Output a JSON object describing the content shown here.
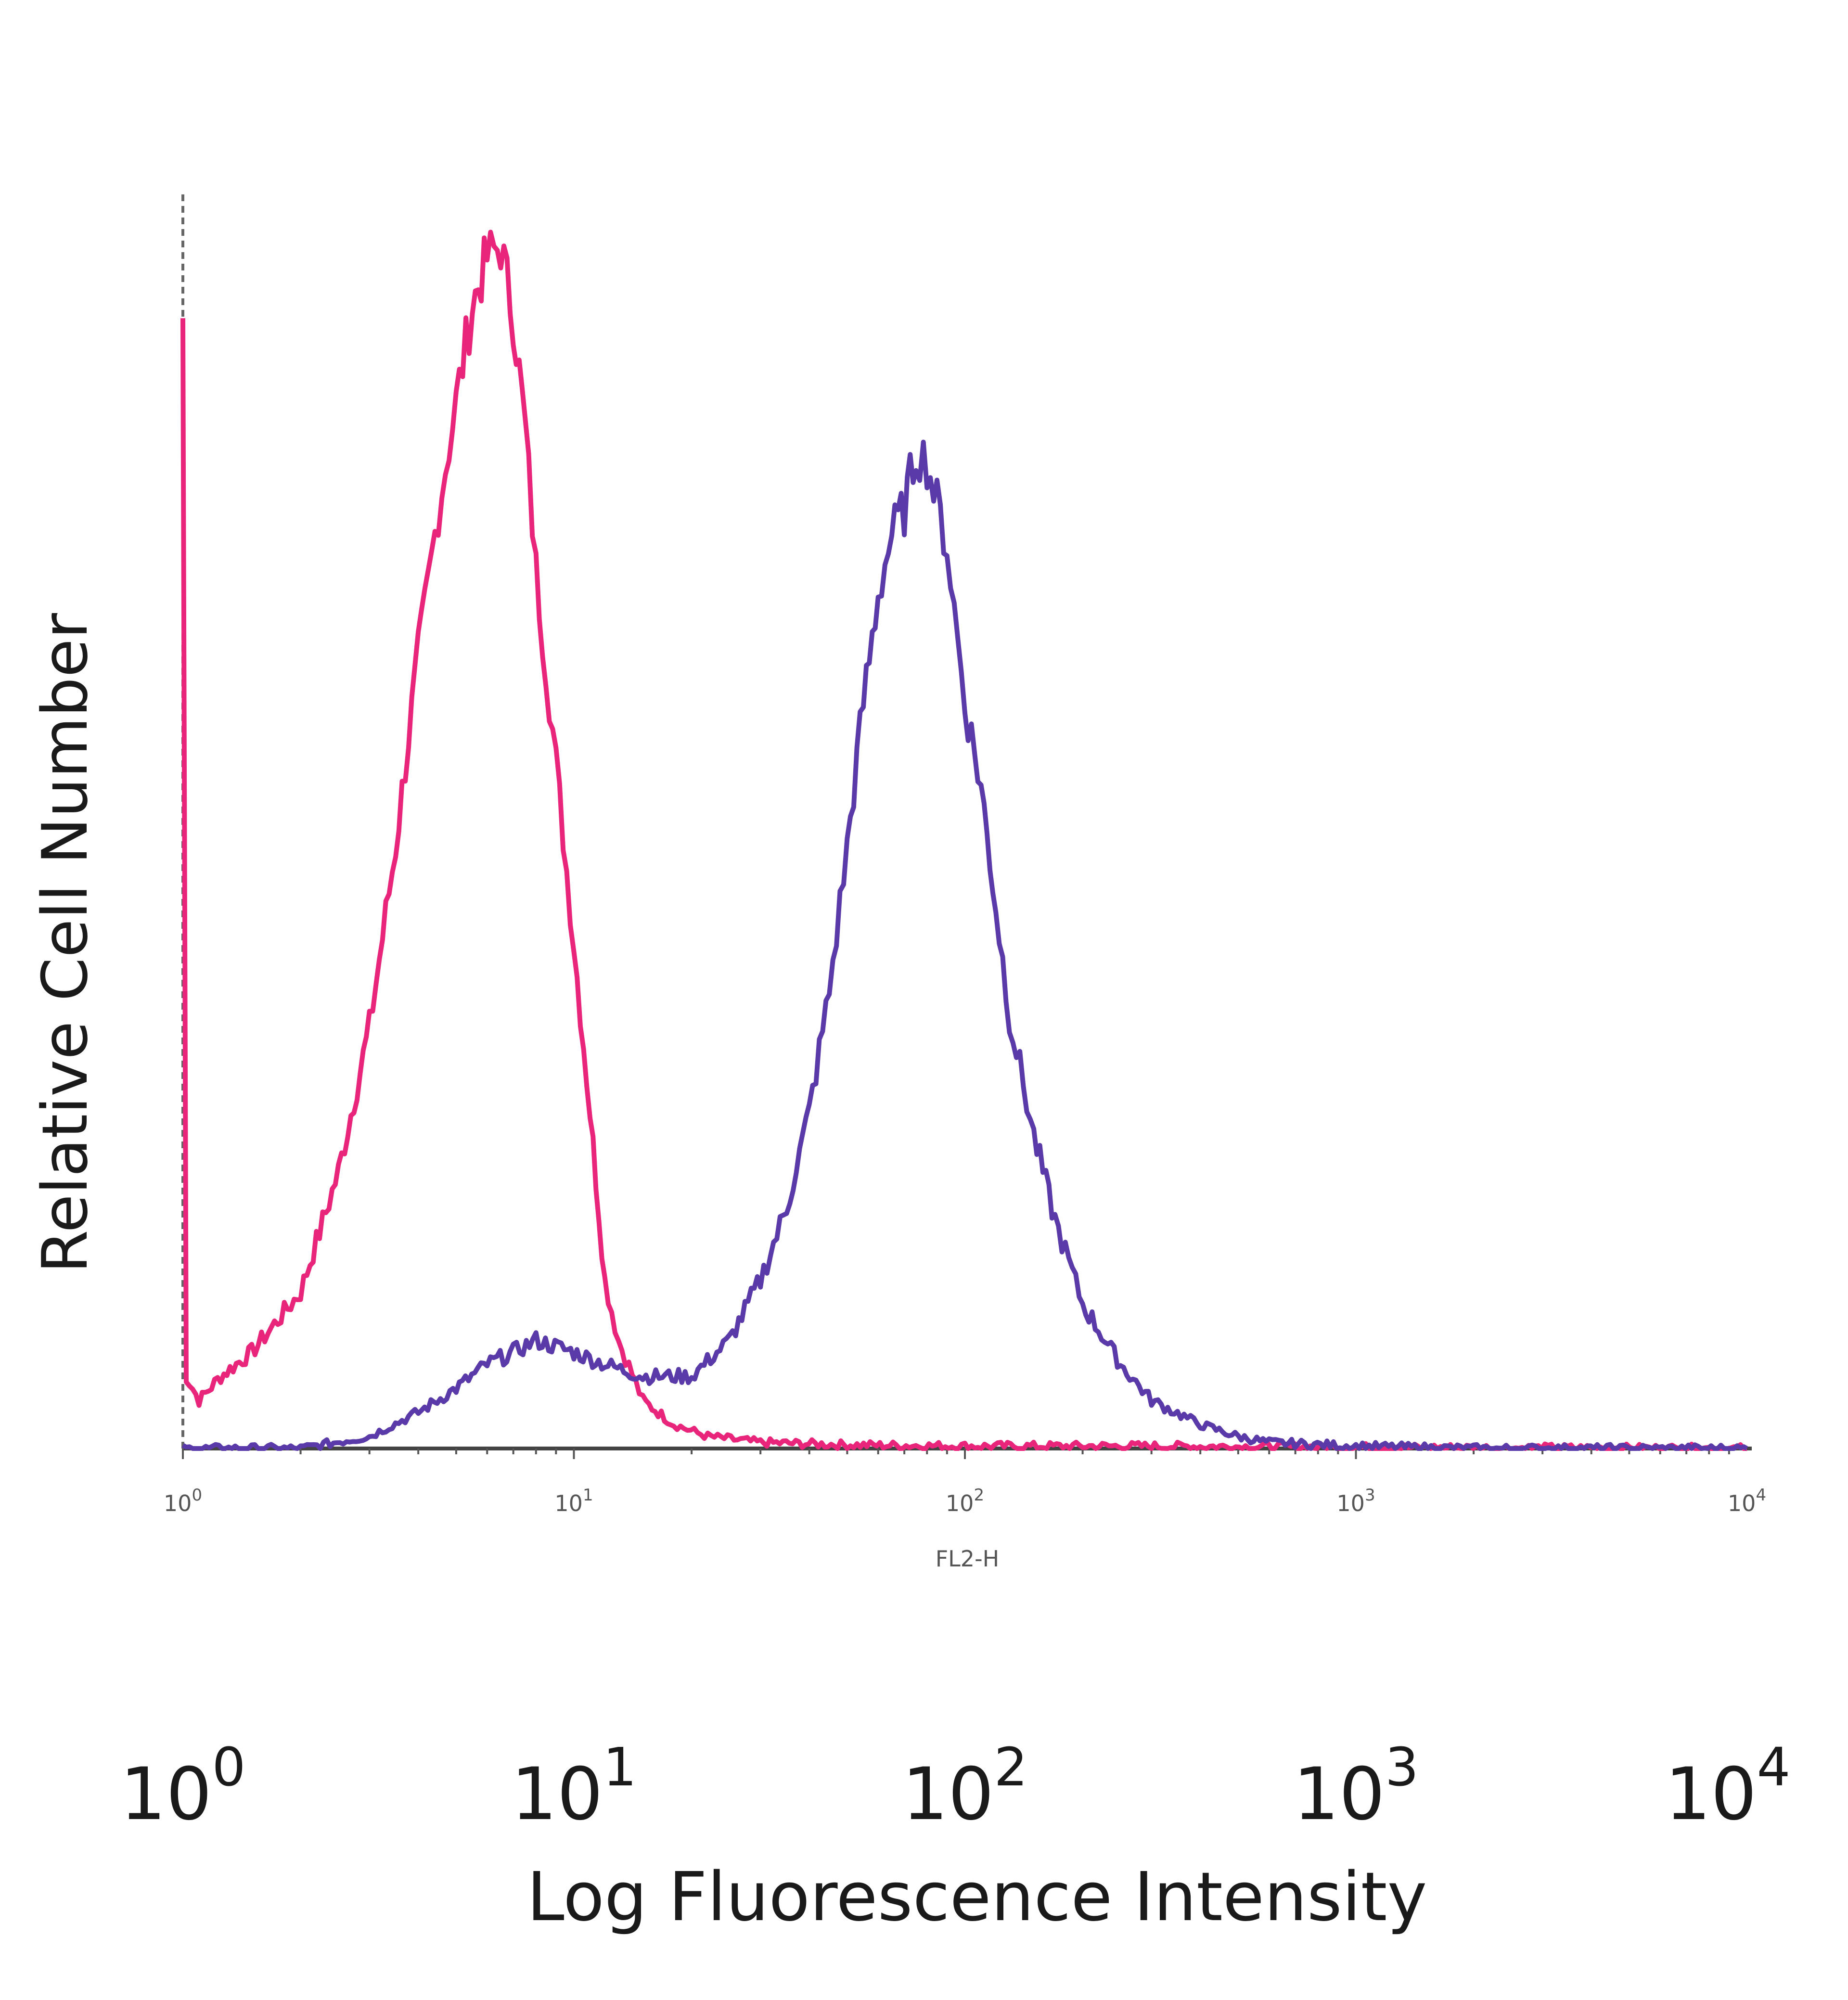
{
  "chart_data": {
    "type": "line",
    "xlabel": "Log Fluorescence Intensity",
    "ylabel": "Relative Cell Number",
    "x_scale": "log",
    "xlim": [
      1,
      10000
    ],
    "ylim": [
      0,
      1
    ],
    "grid": false,
    "legend": "none",
    "big_tick_labels": [
      {
        "value": 1,
        "base": "10",
        "exp": "0"
      },
      {
        "value": 10,
        "base": "10",
        "exp": "1"
      },
      {
        "value": 100,
        "base": "10",
        "exp": "2"
      },
      {
        "value": 1000,
        "base": "10",
        "exp": "3"
      },
      {
        "value": 10000,
        "base": "10",
        "exp": "4"
      }
    ],
    "small_tick_labels": [
      {
        "value": 1,
        "base": "10",
        "exp": "0"
      },
      {
        "value": 10,
        "base": "10",
        "exp": "1"
      },
      {
        "value": 100,
        "base": "10",
        "exp": "2"
      },
      {
        "value": 1000,
        "base": "10",
        "exp": "3"
      },
      {
        "value": 10000,
        "base": "10",
        "exp": "4"
      }
    ],
    "parameter_label": "FL2-H",
    "series": [
      {
        "color": "#e8257a",
        "x": [
          1,
          1.02,
          1.1,
          1.25,
          1.5,
          2,
          2.5,
          3,
          3.5,
          4,
          4.5,
          5,
          5.5,
          6,
          6.5,
          7,
          7.5,
          8,
          9,
          10,
          11,
          12,
          13,
          15,
          18,
          22,
          30,
          50,
          100,
          300,
          1000,
          10000
        ],
        "y": [
          0.94,
          0.06,
          0.04,
          0.06,
          0.08,
          0.13,
          0.23,
          0.35,
          0.5,
          0.66,
          0.78,
          0.87,
          0.95,
          0.99,
          1.0,
          0.94,
          0.85,
          0.73,
          0.57,
          0.42,
          0.28,
          0.14,
          0.09,
          0.04,
          0.02,
          0.01,
          0.005,
          0.003,
          0.002,
          0.002,
          0.001,
          0.0
        ]
      },
      {
        "color": "#5a3aa8",
        "x": [
          1,
          2,
          3,
          4,
          5,
          6,
          7,
          8,
          10,
          12,
          15,
          20,
          25,
          30,
          35,
          40,
          45,
          50,
          55,
          60,
          65,
          70,
          75,
          80,
          90,
          100,
          110,
          120,
          130,
          150,
          170,
          200,
          250,
          300,
          400,
          500,
          600,
          1000,
          2000,
          10000
        ],
        "y": [
          0.0,
          0.0,
          0.01,
          0.03,
          0.05,
          0.07,
          0.08,
          0.09,
          0.08,
          0.07,
          0.06,
          0.06,
          0.09,
          0.14,
          0.2,
          0.28,
          0.38,
          0.5,
          0.62,
          0.71,
          0.76,
          0.78,
          0.83,
          0.82,
          0.75,
          0.62,
          0.55,
          0.45,
          0.36,
          0.26,
          0.19,
          0.12,
          0.07,
          0.04,
          0.02,
          0.01,
          0.005,
          0.002,
          0.0,
          0.0
        ]
      }
    ]
  }
}
